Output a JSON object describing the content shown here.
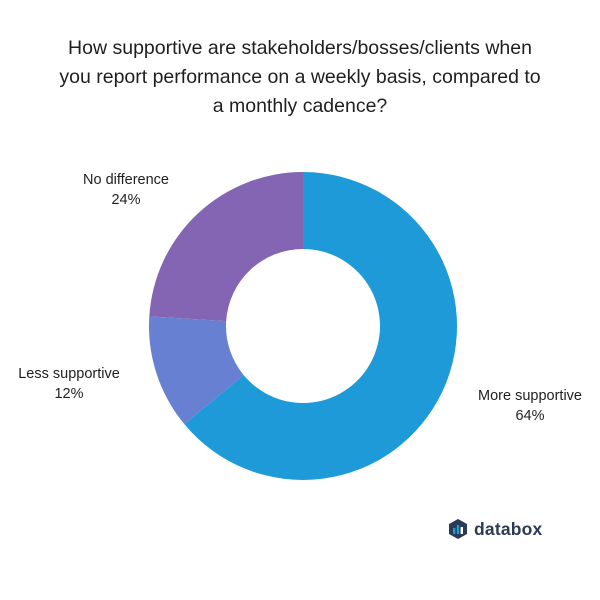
{
  "chart_data": {
    "type": "pie",
    "variant": "donut",
    "title_lines": [
      "How supportive are stakeholders/bosses/clients when",
      "you report performance on a weekly basis, compared to",
      "a monthly cadence?"
    ],
    "slices": [
      {
        "label": "More supportive",
        "value": 64,
        "value_label": "64%",
        "color": "#1f9ad9"
      },
      {
        "label": "Less supportive",
        "value": 12,
        "value_label": "12%",
        "color": "#6880d2"
      },
      {
        "label": "No difference",
        "value": 24,
        "value_label": "24%",
        "color": "#8465b4"
      }
    ],
    "start_angle_deg": 0,
    "direction": "clockwise",
    "legend": "none"
  },
  "brand": {
    "name": "databox",
    "icon": "databox-logo-icon",
    "color": "#2b3a55",
    "icon_color": "#1f9ad9"
  }
}
